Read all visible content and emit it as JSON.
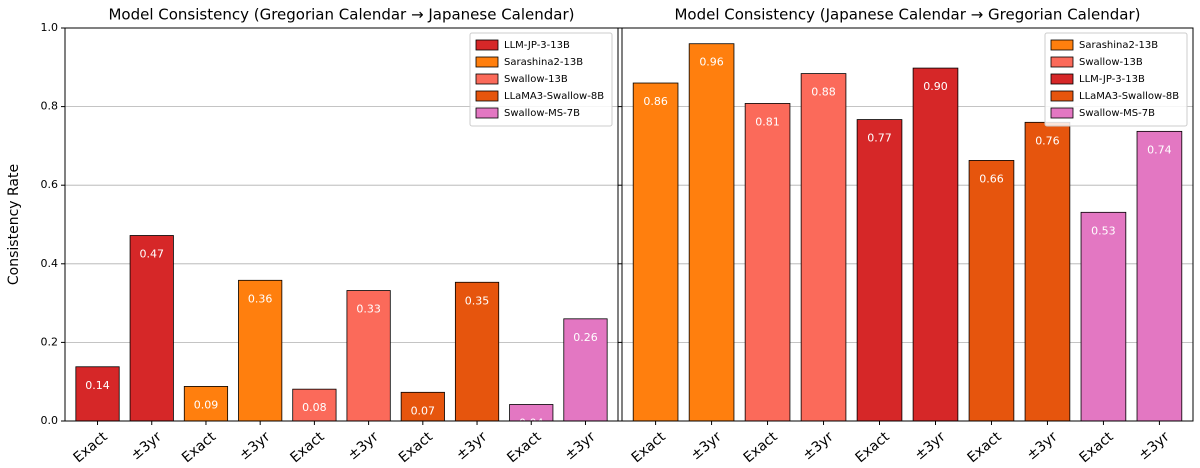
{
  "chart_data": [
    {
      "type": "bar",
      "title": "Model Consistency (Gregorian Calendar → Japanese Calendar)",
      "ylabel": "Consistency Rate",
      "categories": [
        "Exact",
        "±3yr",
        "Exact",
        "±3yr",
        "Exact",
        "±3yr",
        "Exact",
        "±3yr",
        "Exact",
        "±3yr"
      ],
      "values": [
        0.138,
        0.472,
        0.088,
        0.358,
        0.081,
        0.332,
        0.073,
        0.353,
        0.042,
        0.26
      ],
      "value_labels": [
        "0.14",
        "0.47",
        "0.09",
        "0.36",
        "0.08",
        "0.33",
        "0.07",
        "0.35",
        "0.04",
        "0.26"
      ],
      "colors": [
        "#d62728",
        "#d62728",
        "#ff7f0e",
        "#ff7f0e",
        "#fb6a5a",
        "#fb6a5a",
        "#e6550d",
        "#e6550d",
        "#e377c2",
        "#e377c2"
      ],
      "legend": [
        {
          "name": "LLM-JP-3-13B",
          "color": "#d62728"
        },
        {
          "name": "Sarashina2-13B",
          "color": "#ff7f0e"
        },
        {
          "name": "Swallow-13B",
          "color": "#fb6a5a"
        },
        {
          "name": "LLaMA3-Swallow-8B",
          "color": "#e6550d"
        },
        {
          "name": "Swallow-MS-7B",
          "color": "#e377c2"
        }
      ],
      "legend_loc": "upper right",
      "ylim": [
        0,
        1
      ],
      "yticks": [
        {
          "value": 0,
          "label": "0.0"
        },
        {
          "value": 0.2,
          "label": "0.2"
        },
        {
          "value": 0.4,
          "label": "0.4"
        },
        {
          "value": 0.6,
          "label": "0.6"
        },
        {
          "value": 0.8,
          "label": "0.8"
        },
        {
          "value": 1,
          "label": "1.0"
        }
      ],
      "grid": true
    },
    {
      "type": "bar",
      "title": "Model Consistency (Japanese Calendar → Gregorian Calendar)",
      "categories": [
        "Exact",
        "±3yr",
        "Exact",
        "±3yr",
        "Exact",
        "±3yr",
        "Exact",
        "±3yr",
        "Exact",
        "±3yr"
      ],
      "values": [
        0.86,
        0.96,
        0.808,
        0.884,
        0.767,
        0.898,
        0.663,
        0.76,
        0.531,
        0.737
      ],
      "value_labels": [
        "0.86",
        "0.96",
        "0.81",
        "0.88",
        "0.77",
        "0.90",
        "0.66",
        "0.76",
        "0.53",
        "0.74"
      ],
      "colors": [
        "#ff7f0e",
        "#ff7f0e",
        "#fb6a5a",
        "#fb6a5a",
        "#d62728",
        "#d62728",
        "#e6550d",
        "#e6550d",
        "#e377c2",
        "#e377c2"
      ],
      "legend": [
        {
          "name": "Sarashina2-13B",
          "color": "#ff7f0e"
        },
        {
          "name": "Swallow-13B",
          "color": "#fb6a5a"
        },
        {
          "name": "LLM-JP-3-13B",
          "color": "#d62728"
        },
        {
          "name": "LLaMA3-Swallow-8B",
          "color": "#e6550d"
        },
        {
          "name": "Swallow-MS-7B",
          "color": "#e377c2"
        }
      ],
      "legend_loc": "upper right",
      "ylim": [
        0,
        1
      ],
      "yticks": [
        0,
        0.2,
        0.4,
        0.6,
        0.8,
        1
      ],
      "grid": true
    }
  ]
}
